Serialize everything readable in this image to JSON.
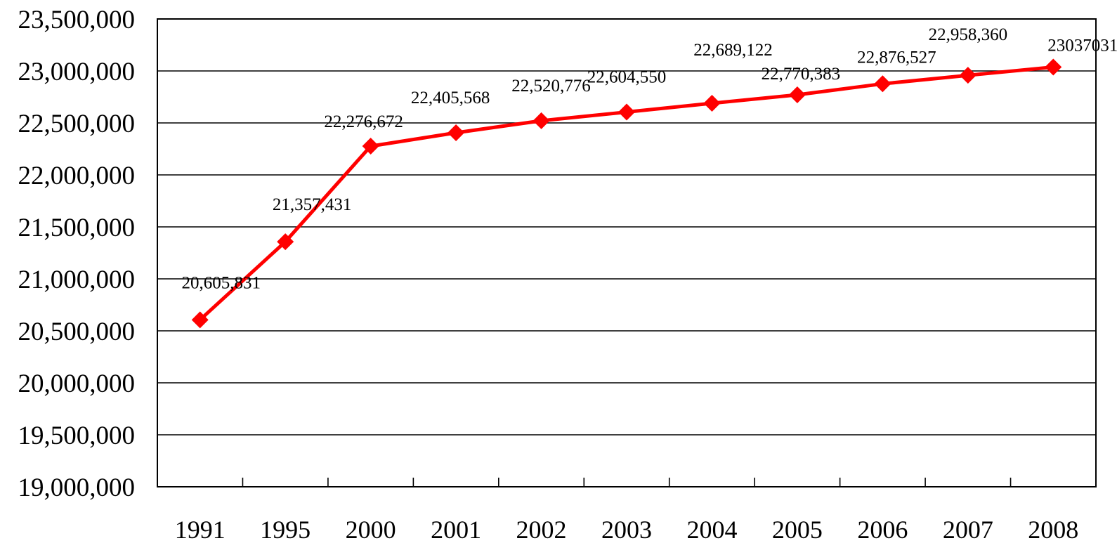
{
  "chart_data": {
    "type": "line",
    "title": "",
    "xlabel": "",
    "ylabel": "",
    "categories": [
      "1991",
      "1995",
      "2000",
      "2001",
      "2002",
      "2003",
      "2004",
      "2005",
      "2006",
      "2007",
      "2008"
    ],
    "series": [
      {
        "values": [
          20605831,
          21357431,
          22276672,
          22405568,
          22520776,
          22604550,
          22689122,
          22770383,
          22876527,
          22958360,
          23037031
        ],
        "data_labels": [
          "20,605,831",
          "21,357,431",
          "22,276,672",
          "22,405,568",
          "22,520,776",
          "22,604,550",
          "22,689,122",
          "22,770,383",
          "22,876,527",
          "22,958,360",
          "23037031"
        ],
        "color": "#ff0000",
        "marker": "diamond"
      }
    ],
    "ylim": [
      19000000,
      23500000
    ],
    "yticks": [
      19000000,
      19500000,
      20000000,
      20500000,
      21000000,
      21500000,
      22000000,
      22500000,
      23000000,
      23500000
    ],
    "ytick_labels": [
      "19,000,000",
      "19,500,000",
      "20,000,000",
      "20,500,000",
      "21,000,000",
      "21,500,000",
      "22,000,000",
      "22,500,000",
      "23,000,000",
      "23,500,000"
    ],
    "grid": "horizontal",
    "legend": "none"
  }
}
